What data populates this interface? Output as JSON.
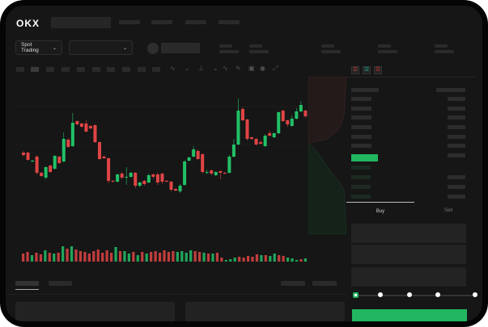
{
  "header": {
    "logo": "OKX"
  },
  "market_selector": {
    "label": "Spot Trading",
    "chevron": "chevron-down-icon"
  },
  "pair_selector": {
    "chevron": "chevron-down-icon"
  },
  "order_form": {
    "tabs": [
      {
        "label": "Buy",
        "active": true
      },
      {
        "label": "Sell",
        "active": false
      }
    ],
    "slider_level_percent": 0,
    "slider_steps": [
      0,
      25,
      50,
      75,
      100
    ],
    "buy_color": "#22b660"
  },
  "colors": {
    "up": "#22c066",
    "down": "#e04444",
    "background": "#161616"
  },
  "chart_data": {
    "type": "candlestick",
    "candles_ohlc": [
      [
        118,
        120,
        113,
        115
      ],
      [
        118,
        119,
        108,
        109
      ],
      [
        107,
        109,
        106,
        108
      ],
      [
        113,
        115,
        91,
        93
      ],
      [
        93,
        94,
        88,
        89
      ],
      [
        87,
        101,
        85,
        100
      ],
      [
        102,
        103,
        93,
        94
      ],
      [
        98,
        115,
        97,
        114
      ],
      [
        113,
        114,
        104,
        105
      ],
      [
        107,
        143,
        106,
        135
      ],
      [
        134,
        136,
        124,
        125
      ],
      [
        126,
        167,
        125,
        155
      ],
      [
        157,
        158,
        152,
        153
      ],
      [
        154,
        155,
        149,
        150
      ],
      [
        154,
        158,
        143,
        144
      ],
      [
        151,
        152,
        147,
        148
      ],
      [
        152,
        153,
        130,
        131
      ],
      [
        131,
        132,
        109,
        110
      ],
      [
        113,
        115,
        110,
        111
      ],
      [
        111,
        112,
        80,
        83
      ],
      [
        83,
        84,
        81,
        82
      ],
      [
        82,
        92,
        81,
        91
      ],
      [
        92,
        94,
        85,
        87
      ],
      [
        87,
        100,
        78,
        88
      ],
      [
        88,
        94,
        87,
        93
      ],
      [
        93,
        94,
        74,
        77
      ],
      [
        77,
        82,
        75,
        81
      ],
      [
        83,
        84,
        77,
        79
      ],
      [
        81,
        92,
        80,
        90
      ],
      [
        91,
        92,
        86,
        88
      ],
      [
        91,
        93,
        78,
        81
      ],
      [
        92,
        93,
        79,
        82
      ],
      [
        83,
        84,
        81,
        82
      ],
      [
        82,
        83,
        70,
        72
      ],
      [
        73,
        74,
        70,
        71
      ],
      [
        70,
        79,
        68,
        77
      ],
      [
        78,
        109,
        77,
        107
      ],
      [
        108,
        113,
        107,
        112
      ],
      [
        113,
        126,
        112,
        122
      ],
      [
        120,
        122,
        109,
        110
      ],
      [
        116,
        117,
        92,
        94
      ],
      [
        93,
        97,
        91,
        94
      ],
      [
        96,
        97,
        90,
        92
      ],
      [
        90,
        95,
        89,
        94
      ],
      [
        95,
        96,
        85,
        93
      ],
      [
        93,
        94,
        91,
        92
      ],
      [
        93,
        115,
        92,
        113
      ],
      [
        113,
        135,
        112,
        128
      ],
      [
        128,
        185,
        127,
        170
      ],
      [
        172,
        174,
        157,
        158
      ],
      [
        159,
        160,
        133,
        135
      ],
      [
        137,
        138,
        134,
        135
      ],
      [
        135,
        136,
        127,
        128
      ],
      [
        131,
        133,
        128,
        129
      ],
      [
        126,
        141,
        125,
        139
      ],
      [
        142,
        145,
        138,
        139
      ],
      [
        137,
        143,
        136,
        142
      ],
      [
        142,
        169,
        141,
        168
      ],
      [
        170,
        171,
        156,
        157
      ],
      [
        158,
        159,
        150,
        153
      ],
      [
        151,
        164,
        150,
        160
      ],
      [
        160,
        173,
        159,
        169
      ],
      [
        169,
        182,
        168,
        177
      ],
      [
        170,
        171,
        161,
        163
      ],
      [
        161,
        172,
        160,
        167
      ]
    ],
    "volume": [
      10,
      12,
      8,
      11,
      9,
      14,
      11,
      10,
      11,
      19,
      16,
      19,
      15,
      13,
      12,
      10,
      13,
      15,
      11,
      14,
      11,
      18,
      13,
      13,
      10,
      12,
      8,
      12,
      10,
      12,
      13,
      11,
      14,
      12,
      13,
      12,
      13,
      11,
      14,
      13,
      12,
      11,
      10,
      10,
      11,
      5,
      2,
      3,
      5,
      6,
      5,
      7,
      6,
      9,
      8,
      8,
      7,
      10,
      8,
      7,
      5,
      4,
      2,
      3,
      4
    ],
    "volume_up": [
      false,
      false,
      true,
      false,
      false,
      true,
      false,
      true,
      false,
      true,
      false,
      true,
      false,
      false,
      false,
      false,
      false,
      false,
      false,
      false,
      false,
      true,
      false,
      true,
      true,
      false,
      true,
      false,
      true,
      false,
      false,
      false,
      false,
      false,
      false,
      true,
      true,
      true,
      true,
      false,
      false,
      true,
      false,
      true,
      false,
      false,
      true,
      true,
      true,
      false,
      false,
      false,
      false,
      false,
      true,
      false,
      true,
      true,
      false,
      false,
      true,
      true,
      true,
      false,
      true
    ]
  }
}
